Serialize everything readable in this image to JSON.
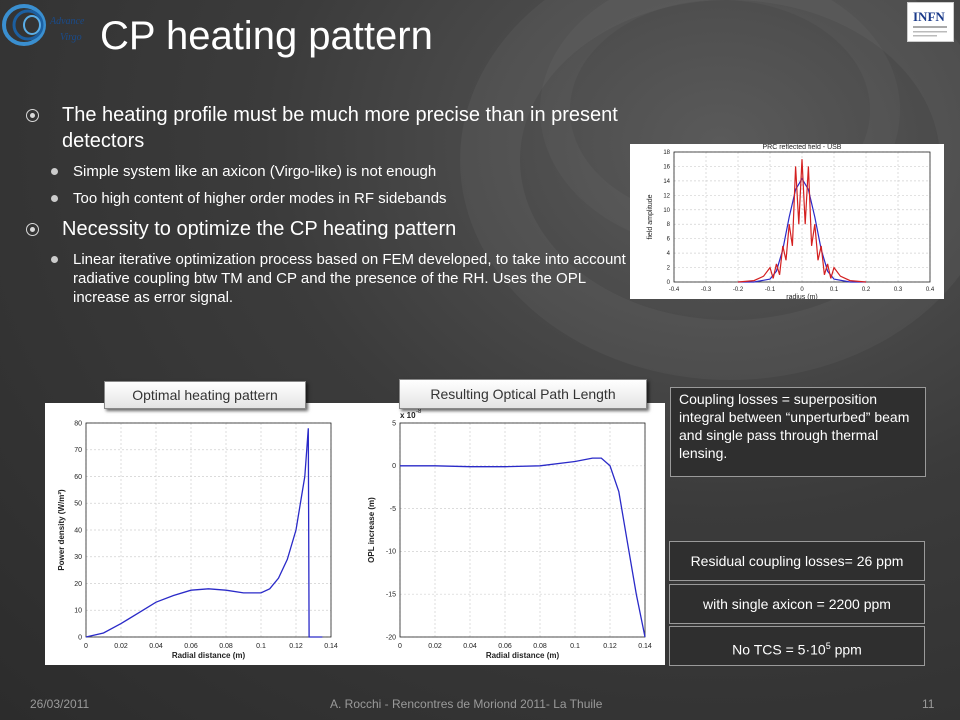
{
  "slide": {
    "title": "CP heating pattern",
    "footer_date": "26/03/2011",
    "footer_center": "A. Rocchi - Rencontres de Moriond 2011- La Thuile",
    "page_number": "11"
  },
  "logos": {
    "advanced_virgo": "Advanced Virgo",
    "infn": "INFN"
  },
  "bullets": [
    {
      "level": 1,
      "text": "The heating profile must be much more precise than in present detectors"
    },
    {
      "level": 2,
      "text": "Simple system like an axicon (Virgo-like) is not enough"
    },
    {
      "level": 2,
      "text": "Too high content of higher order modes in RF sidebands"
    },
    {
      "level": 1,
      "text": "Necessity to optimize the CP heating pattern"
    },
    {
      "level": 2,
      "text": "Linear iterative optimization process based on FEM developed, to take into account radiative coupling btw TM and CP and the presence of the RH. Uses the OPL increase as error signal."
    }
  ],
  "labels": {
    "optimal_heating": "Optimal heating pattern",
    "resulting_opl": "Resulting Optical Path Length"
  },
  "boxes": {
    "coupling_losses": "Coupling losses = superposition integral between “unperturbed” beam and single pass through thermal lensing.",
    "residual": "Residual coupling losses= 26 ppm",
    "axicon": "with single axicon = 2200 ppm",
    "no_tcs_prefix": "No TCS = 5·10",
    "no_tcs_exp": "5",
    "no_tcs_suffix": " ppm"
  },
  "chart_data": [
    {
      "type": "line",
      "title": "PRC reflected field - USB",
      "xlabel": "radius (m)",
      "ylabel": "field amplitude",
      "xlim": [
        -0.4,
        0.4
      ],
      "ylim": [
        0,
        18
      ],
      "xticks": [
        "-0.4",
        "-0.3",
        "-0.2",
        "-0.1",
        "0",
        "0.1",
        "0.2",
        "0.3",
        "0.4"
      ],
      "yticks": [
        "0",
        "2",
        "4",
        "6",
        "8",
        "10",
        "12",
        "14",
        "16",
        "18"
      ],
      "colors": {
        "gaussian": "#2a2ac8",
        "heated": "#d42020"
      },
      "series": [
        {
          "x": [
            -0.2,
            -0.15,
            -0.1,
            -0.08,
            -0.06,
            -0.04,
            -0.02,
            0,
            0.02,
            0.04,
            0.06,
            0.08,
            0.1,
            0.15,
            0.2
          ],
          "y": [
            0,
            0,
            0.4,
            1.5,
            4.5,
            9,
            12.8,
            14.3,
            12.8,
            9,
            4.5,
            1.5,
            0.4,
            0,
            0
          ]
        },
        {
          "x": [
            -0.2,
            -0.15,
            -0.12,
            -0.1,
            -0.09,
            -0.08,
            -0.07,
            -0.06,
            -0.05,
            -0.04,
            -0.03,
            -0.02,
            -0.01,
            0,
            0.01,
            0.02,
            0.03,
            0.04,
            0.05,
            0.06,
            0.07,
            0.08,
            0.09,
            0.1,
            0.12,
            0.15,
            0.2
          ],
          "y": [
            0,
            0.2,
            0.8,
            2,
            0.5,
            2.5,
            1,
            5,
            3,
            8,
            5,
            16,
            8,
            17,
            8,
            16,
            5,
            8,
            3,
            5,
            1,
            2.5,
            0.5,
            2,
            0.8,
            0.2,
            0
          ]
        }
      ]
    },
    {
      "type": "line",
      "title": "",
      "xlabel": "Radial distance (m)",
      "ylabel": "Power density (W/m²)",
      "xlim": [
        0,
        0.14
      ],
      "ylim": [
        0,
        80
      ],
      "xticks": [
        "0",
        "0.02",
        "0.04",
        "0.06",
        "0.08",
        "0.1",
        "0.12",
        "0.14"
      ],
      "yticks": [
        "0",
        "10",
        "20",
        "30",
        "40",
        "50",
        "60",
        "70",
        "80"
      ],
      "color": "#2a2ac8",
      "series": [
        {
          "x": [
            0,
            0.01,
            0.02,
            0.03,
            0.04,
            0.05,
            0.06,
            0.07,
            0.08,
            0.09,
            0.1,
            0.105,
            0.11,
            0.115,
            0.12,
            0.125,
            0.127,
            0.1275,
            0.13,
            0.135
          ],
          "y": [
            0,
            1.5,
            5,
            9,
            13,
            15.5,
            17.5,
            18,
            17.5,
            16.5,
            16.5,
            18,
            22,
            29,
            40,
            60,
            78,
            0,
            0,
            0
          ]
        }
      ]
    },
    {
      "type": "line",
      "title": "",
      "xlabel": "Radial distance (m)",
      "ylabel": "OPL increase (m)",
      "exponent_label": "x 10",
      "exponent_power": "-8",
      "xlim": [
        0,
        0.14
      ],
      "ylim": [
        -20,
        5
      ],
      "xticks": [
        "0",
        "0.02",
        "0.04",
        "0.06",
        "0.08",
        "0.1",
        "0.12",
        "0.14"
      ],
      "yticks": [
        "5",
        "0",
        "-5",
        "-10",
        "-15",
        "-20"
      ],
      "color": "#2a2ac8",
      "series": [
        {
          "x": [
            0,
            0.02,
            0.04,
            0.06,
            0.08,
            0.1,
            0.11,
            0.115,
            0.12,
            0.125,
            0.13,
            0.135,
            0.14
          ],
          "y": [
            0,
            0,
            -0.1,
            -0.1,
            0,
            0.5,
            0.9,
            0.9,
            0,
            -3,
            -9,
            -15,
            -20
          ]
        }
      ]
    }
  ]
}
